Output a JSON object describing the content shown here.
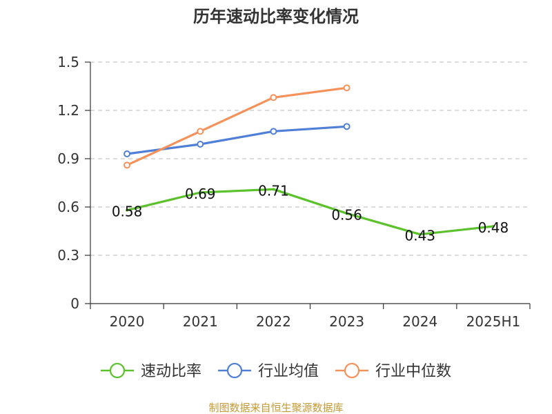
{
  "chart_data": {
    "type": "line",
    "title": "历年速动比率变化情况",
    "categories": [
      "2020",
      "2021",
      "2022",
      "2023",
      "2024",
      "2025H1"
    ],
    "ylim": [
      0,
      1.5
    ],
    "yticks": [
      "0",
      "0.3",
      "0.6",
      "0.9",
      "1.2",
      "1.5"
    ],
    "grid": true,
    "legend_position": "bottom",
    "series": [
      {
        "name": "速动比率",
        "color": "#5cc22c",
        "values": [
          0.58,
          0.69,
          0.71,
          0.56,
          0.43,
          0.48
        ],
        "data_labels": [
          "0.58",
          "0.69",
          "0.71",
          "0.56",
          "0.43",
          "0.48"
        ],
        "show_markers": false
      },
      {
        "name": "行业均值",
        "color": "#4f7fd6",
        "values": [
          0.93,
          0.99,
          1.07,
          1.1,
          null,
          null
        ],
        "show_markers": true
      },
      {
        "name": "行业中位数",
        "color": "#f6915a",
        "values": [
          0.86,
          1.07,
          1.28,
          1.34,
          null,
          null
        ],
        "show_markers": true
      }
    ],
    "source": "制图数据来自恒生聚源数据库",
    "source_color": "#c49a35"
  }
}
